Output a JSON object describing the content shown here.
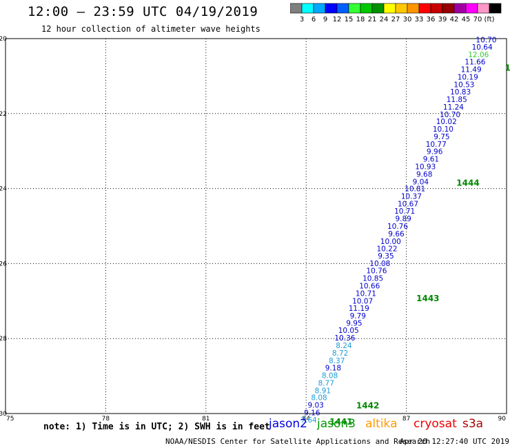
{
  "title": "12:00 – 23:59 UTC 04/19/2019",
  "subtitle": "12 hour collection of altimeter wave heights",
  "colorbar": {
    "colors": [
      "#7f7f7f",
      "#00ffff",
      "#00a8ff",
      "#0000ff",
      "#0060ff",
      "#33ff33",
      "#00c800",
      "#009000",
      "#ffff00",
      "#ffc800",
      "#ff9600",
      "#ff0000",
      "#c80000",
      "#960000",
      "#a000a0",
      "#ff00ff",
      "#ff96c8",
      "#000000"
    ],
    "labels": [
      "3",
      "6",
      "9",
      "12",
      "15",
      "18",
      "21",
      "24",
      "27",
      "30",
      "33",
      "36",
      "39",
      "42",
      "45",
      "70",
      "(ft)"
    ]
  },
  "note": "note:  1) Time is in UTC;  2) SWH is in feet",
  "satellites": [
    {
      "name": "jason2",
      "color": "#0000e0"
    },
    {
      "name": "jason3",
      "color": "#009900"
    },
    {
      "name": "altika",
      "color": "#ff9900"
    },
    {
      "name": "cryosat",
      "color": "#ee0000"
    },
    {
      "name": "s3a",
      "color": "#aa0000"
    }
  ],
  "footer_left": "NOAA/NESDIS Center for Satellite Applications and Research",
  "footer_right": "Apr 20 12:27:40 UTC 2019",
  "chart_data": {
    "type": "scatter",
    "x_ticks": [
      "75",
      "78",
      "81",
      "84",
      "87",
      "90"
    ],
    "y_ticks": [
      "-20",
      "-22",
      "-24",
      "-26",
      "-28",
      "-30"
    ],
    "xlim": [
      75,
      90
    ],
    "ylim": [
      -30,
      -20
    ],
    "grid": true,
    "points": [
      {
        "lon": 89.7,
        "lat": -20.03,
        "label": "10.70",
        "color": "#0000cc"
      },
      {
        "lon": 89.58,
        "lat": -20.22,
        "label": "10.64",
        "color": "#0000cc"
      },
      {
        "lon": 89.47,
        "lat": -20.42,
        "label": "12.06",
        "color": "#33cc33"
      },
      {
        "lon": 89.37,
        "lat": -20.62,
        "label": "11.66",
        "color": "#0000cc"
      },
      {
        "lon": 89.25,
        "lat": -20.82,
        "label": "11.49",
        "color": "#0000cc"
      },
      {
        "lon": 89.15,
        "lat": -21.02,
        "label": "10.19",
        "color": "#0000cc"
      },
      {
        "lon": 89.04,
        "lat": -21.22,
        "label": "10.53",
        "color": "#0000cc"
      },
      {
        "lon": 88.93,
        "lat": -21.42,
        "label": "10.83",
        "color": "#0000cc"
      },
      {
        "lon": 88.82,
        "lat": -21.62,
        "label": "11.85",
        "color": "#0000cc"
      },
      {
        "lon": 88.72,
        "lat": -21.82,
        "label": "11.24",
        "color": "#0000cc"
      },
      {
        "lon": 88.62,
        "lat": -22.02,
        "label": "10.70",
        "color": "#0000cc"
      },
      {
        "lon": 88.51,
        "lat": -22.21,
        "label": "10.02",
        "color": "#0000cc"
      },
      {
        "lon": 88.41,
        "lat": -22.41,
        "label": "10.10",
        "color": "#0000cc"
      },
      {
        "lon": 88.3,
        "lat": -22.61,
        "label": "9.75",
        "color": "#0000cc"
      },
      {
        "lon": 88.2,
        "lat": -22.81,
        "label": "10.77",
        "color": "#0000cc"
      },
      {
        "lon": 88.09,
        "lat": -23.01,
        "label": "9.96",
        "color": "#0000cc"
      },
      {
        "lon": 87.98,
        "lat": -23.21,
        "label": "9.61",
        "color": "#0000cc"
      },
      {
        "lon": 87.88,
        "lat": -23.41,
        "label": "10.93",
        "color": "#0000cc"
      },
      {
        "lon": 87.78,
        "lat": -23.61,
        "label": "9.68",
        "color": "#0000cc"
      },
      {
        "lon": 87.67,
        "lat": -23.81,
        "label": "9.04",
        "color": "#0000cc"
      },
      {
        "lon": 87.57,
        "lat": -24.0,
        "label": "10.81",
        "color": "#0000cc"
      },
      {
        "lon": 87.46,
        "lat": -24.2,
        "label": "10.37",
        "color": "#0000cc"
      },
      {
        "lon": 87.36,
        "lat": -24.4,
        "label": "10.67",
        "color": "#0000cc"
      },
      {
        "lon": 87.26,
        "lat": -24.6,
        "label": "10.71",
        "color": "#0000cc"
      },
      {
        "lon": 87.15,
        "lat": -24.8,
        "label": "9.89",
        "color": "#0000cc"
      },
      {
        "lon": 87.05,
        "lat": -25.0,
        "label": "10.76",
        "color": "#0000cc"
      },
      {
        "lon": 86.94,
        "lat": -25.2,
        "label": "9.66",
        "color": "#0000cc"
      },
      {
        "lon": 86.84,
        "lat": -25.4,
        "label": "10.00",
        "color": "#0000cc"
      },
      {
        "lon": 86.73,
        "lat": -25.6,
        "label": "10.22",
        "color": "#0000cc"
      },
      {
        "lon": 86.63,
        "lat": -25.79,
        "label": "9.35",
        "color": "#0000cc"
      },
      {
        "lon": 86.52,
        "lat": -25.99,
        "label": "10.08",
        "color": "#0000cc"
      },
      {
        "lon": 86.42,
        "lat": -26.19,
        "label": "10.76",
        "color": "#0000cc"
      },
      {
        "lon": 86.31,
        "lat": -26.39,
        "label": "10.85",
        "color": "#0000cc"
      },
      {
        "lon": 86.21,
        "lat": -26.59,
        "label": "10.66",
        "color": "#0000cc"
      },
      {
        "lon": 86.1,
        "lat": -26.79,
        "label": "10.71",
        "color": "#0000cc"
      },
      {
        "lon": 86.0,
        "lat": -26.99,
        "label": "10.07",
        "color": "#0000cc"
      },
      {
        "lon": 85.89,
        "lat": -27.19,
        "label": "11.19",
        "color": "#0000cc"
      },
      {
        "lon": 85.79,
        "lat": -27.39,
        "label": "9.79",
        "color": "#0000cc"
      },
      {
        "lon": 85.68,
        "lat": -27.58,
        "label": "9.95",
        "color": "#0000cc"
      },
      {
        "lon": 85.58,
        "lat": -27.78,
        "label": "10.05",
        "color": "#0000cc"
      },
      {
        "lon": 85.47,
        "lat": -27.98,
        "label": "10.36",
        "color": "#0000cc"
      },
      {
        "lon": 85.37,
        "lat": -28.18,
        "label": "8.24",
        "color": "#1e9bd7"
      },
      {
        "lon": 85.26,
        "lat": -28.38,
        "label": "8.72",
        "color": "#1e9bd7"
      },
      {
        "lon": 85.16,
        "lat": -28.58,
        "label": "8.37",
        "color": "#1e9bd7"
      },
      {
        "lon": 85.05,
        "lat": -28.78,
        "label": "9.18",
        "color": "#0000cc"
      },
      {
        "lon": 84.95,
        "lat": -28.98,
        "label": "8.08",
        "color": "#1e9bd7"
      },
      {
        "lon": 84.84,
        "lat": -29.18,
        "label": "8.77",
        "color": "#1e9bd7"
      },
      {
        "lon": 84.74,
        "lat": -29.38,
        "label": "8.91",
        "color": "#1e9bd7"
      },
      {
        "lon": 84.63,
        "lat": -29.57,
        "label": "8.08",
        "color": "#1e9bd7"
      },
      {
        "lon": 84.53,
        "lat": -29.77,
        "label": "9.03",
        "color": "#0000cc"
      },
      {
        "lon": 84.42,
        "lat": -29.97,
        "label": "9.16",
        "color": "#0000cc"
      },
      {
        "lon": 84.32,
        "lat": -30.17,
        "label": "7.64",
        "color": "#1e9bd7"
      }
    ],
    "track_labels": [
      {
        "lon": 89.95,
        "lat": -20.78,
        "label": "1",
        "color": "#008800"
      },
      {
        "lon": 88.5,
        "lat": -23.85,
        "label": "1444",
        "color": "#008800"
      },
      {
        "lon": 87.3,
        "lat": -26.93,
        "label": "1443",
        "color": "#008800"
      },
      {
        "lon": 85.5,
        "lat": -29.79,
        "label": "1442",
        "color": "#008800"
      },
      {
        "lon": 84.7,
        "lat": -30.22,
        "label": "1441",
        "color": "#008800"
      }
    ]
  }
}
